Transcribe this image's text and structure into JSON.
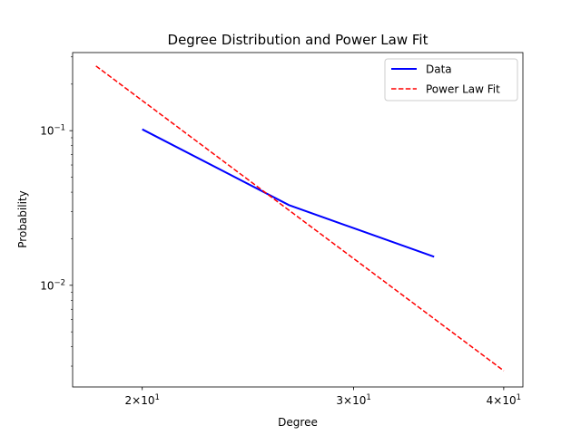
{
  "chart_data": {
    "type": "line",
    "title": "Degree Distribution and Power Law Fit",
    "xlabel": "Degree",
    "ylabel": "Probability",
    "xscale": "log",
    "yscale": "log",
    "xlim": [
      17.5,
      41.5
    ],
    "ylim": [
      0.0022,
      0.32
    ],
    "grid": false,
    "legend": "top-right",
    "x_ticks": [
      {
        "value": 20,
        "base": "2",
        "exp": "1"
      },
      {
        "value": 30,
        "base": "3",
        "exp": "1"
      },
      {
        "value": 40,
        "base": "4",
        "exp": "1"
      }
    ],
    "y_ticks": [
      {
        "value": 0.1,
        "exp": "−1"
      },
      {
        "value": 0.01,
        "exp": "−2"
      }
    ],
    "series": [
      {
        "name": "Data",
        "color": "#0000ff",
        "style": "solid",
        "x": [
          20,
          26.5,
          35
        ],
        "y": [
          0.102,
          0.033,
          0.0153
        ]
      },
      {
        "name": "Power Law Fit",
        "color": "#ff0000",
        "style": "dashed",
        "x": [
          18.3,
          40
        ],
        "y": [
          0.262,
          0.0028
        ]
      }
    ]
  }
}
